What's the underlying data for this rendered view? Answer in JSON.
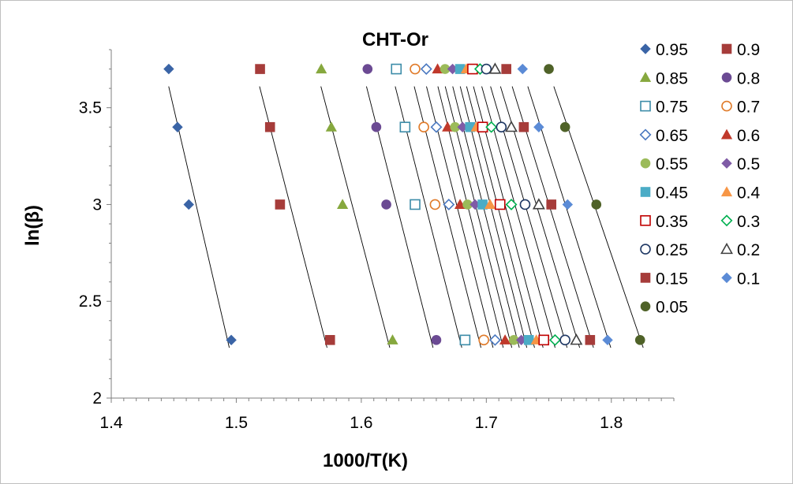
{
  "chart_data": {
    "type": "scatter",
    "title": "CHT-Or",
    "xlabel": "1000/T(K)",
    "ylabel": "ln(β)",
    "xlim": [
      1.4,
      1.85
    ],
    "ylim": [
      2,
      3.8
    ],
    "x_ticks": [
      "1.4",
      "1.5",
      "1.6",
      "1.7",
      "1.8"
    ],
    "y_ticks": [
      "2",
      "2.5",
      "3",
      "3.5"
    ],
    "x_tick_values": [
      1.4,
      1.5,
      1.6,
      1.7,
      1.8
    ],
    "y_tick_values": [
      2,
      2.5,
      3,
      3.5
    ],
    "y_levels": [
      2.3,
      3.0,
      3.4,
      3.7
    ],
    "grid": false,
    "legend_position": "right",
    "series": [
      {
        "name": "0.95",
        "marker": "diamond",
        "filled": true,
        "color": "#3A64A6",
        "x": [
          1.496,
          1.462,
          1.453,
          1.446
        ]
      },
      {
        "name": "0.9",
        "marker": "square",
        "filled": true,
        "color": "#A63C3A",
        "x": [
          1.575,
          1.535,
          1.527,
          1.519
        ]
      },
      {
        "name": "0.85",
        "marker": "triangle",
        "filled": true,
        "color": "#86A83E",
        "x": [
          1.625,
          1.585,
          1.576,
          1.568
        ]
      },
      {
        "name": "0.8",
        "marker": "circle",
        "filled": true,
        "color": "#6B4A93",
        "x": [
          1.66,
          1.62,
          1.612,
          1.605
        ]
      },
      {
        "name": "0.75",
        "marker": "square",
        "filled": false,
        "color": "#3C8CA8",
        "x": [
          1.683,
          1.643,
          1.635,
          1.628
        ]
      },
      {
        "name": "0.7",
        "marker": "circle",
        "filled": false,
        "color": "#E07B2A",
        "x": [
          1.698,
          1.659,
          1.65,
          1.643
        ]
      },
      {
        "name": "0.65",
        "marker": "diamond",
        "filled": false,
        "color": "#4A78C0",
        "x": [
          1.707,
          1.67,
          1.66,
          1.652
        ]
      },
      {
        "name": "0.6",
        "marker": "triangle",
        "filled": true,
        "color": "#C0392B",
        "x": [
          1.715,
          1.679,
          1.669,
          1.661
        ]
      },
      {
        "name": "0.55",
        "marker": "circle",
        "filled": true,
        "color": "#9BBB59",
        "x": [
          1.722,
          1.685,
          1.675,
          1.667
        ]
      },
      {
        "name": "0.5",
        "marker": "diamond",
        "filled": true,
        "color": "#7F5BA6",
        "x": [
          1.728,
          1.691,
          1.681,
          1.673
        ]
      },
      {
        "name": "0.45",
        "marker": "square",
        "filled": true,
        "color": "#4BACC6",
        "x": [
          1.734,
          1.697,
          1.687,
          1.679
        ]
      },
      {
        "name": "0.4",
        "marker": "triangle",
        "filled": true,
        "color": "#F79646",
        "x": [
          1.74,
          1.703,
          1.692,
          1.684
        ]
      },
      {
        "name": "0.35",
        "marker": "square",
        "filled": false,
        "color": "#C00000",
        "x": [
          1.746,
          1.711,
          1.697,
          1.689
        ]
      },
      {
        "name": "0.3",
        "marker": "diamond",
        "filled": false,
        "color": "#00B050",
        "x": [
          1.755,
          1.72,
          1.704,
          1.695
        ]
      },
      {
        "name": "0.25",
        "marker": "circle",
        "filled": false,
        "color": "#1F3864",
        "x": [
          1.763,
          1.731,
          1.712,
          1.7
        ]
      },
      {
        "name": "0.2",
        "marker": "triangle",
        "filled": false,
        "color": "#404040",
        "x": [
          1.772,
          1.742,
          1.72,
          1.707
        ]
      },
      {
        "name": "0.15",
        "marker": "square",
        "filled": true,
        "color": "#A63C3A",
        "x": [
          1.783,
          1.752,
          1.73,
          1.716
        ]
      },
      {
        "name": "0.1",
        "marker": "diamond",
        "filled": true,
        "color": "#5B8BD6",
        "x": [
          1.797,
          1.765,
          1.742,
          1.729
        ]
      },
      {
        "name": "0.05",
        "marker": "circle",
        "filled": true,
        "color": "#4F6228",
        "x": [
          1.823,
          1.788,
          1.763,
          1.75
        ]
      }
    ]
  }
}
